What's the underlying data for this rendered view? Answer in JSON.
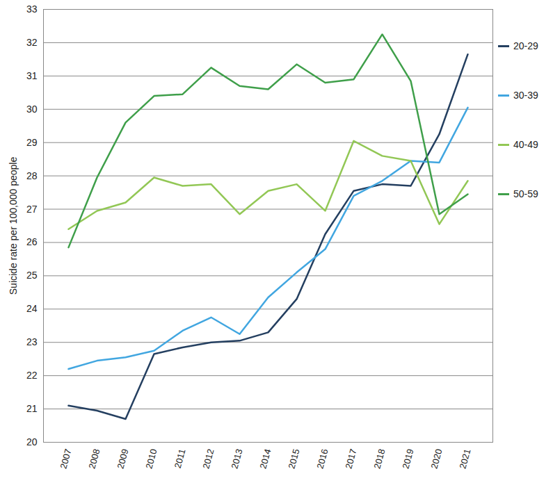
{
  "chart_data": {
    "type": "line",
    "y_label": "Suicide rate per 100,000 people",
    "x": [
      2007,
      2008,
      2009,
      2010,
      2011,
      2012,
      2013,
      2014,
      2015,
      2016,
      2017,
      2018,
      2019,
      2020,
      2021
    ],
    "series": [
      {
        "name": "20-29",
        "color": "#243f60",
        "values": [
          21.1,
          20.95,
          20.7,
          22.65,
          22.85,
          23.0,
          23.05,
          23.3,
          24.3,
          26.25,
          27.55,
          27.75,
          27.7,
          29.25,
          31.65
        ]
      },
      {
        "name": "30-39",
        "color": "#41a6e0",
        "values": [
          22.2,
          22.45,
          22.55,
          22.75,
          23.35,
          23.75,
          23.25,
          24.35,
          25.1,
          25.8,
          27.4,
          27.85,
          28.45,
          28.4,
          30.05
        ]
      },
      {
        "name": "40-49",
        "color": "#92c755",
        "values": [
          26.4,
          26.95,
          27.2,
          27.95,
          27.7,
          27.75,
          26.85,
          27.55,
          27.75,
          26.95,
          29.05,
          28.6,
          28.45,
          26.55,
          27.85
        ]
      },
      {
        "name": "50-59",
        "color": "#3f9f4a",
        "values": [
          25.85,
          27.95,
          29.6,
          30.4,
          30.45,
          31.25,
          30.7,
          30.6,
          31.35,
          30.8,
          30.9,
          32.25,
          30.85,
          26.85,
          27.45
        ]
      }
    ],
    "ylim": [
      20,
      33
    ],
    "yticks": [
      20,
      21,
      22,
      23,
      24,
      25,
      26,
      27,
      28,
      29,
      30,
      31,
      32,
      33
    ],
    "grid": true,
    "legend": "right"
  }
}
